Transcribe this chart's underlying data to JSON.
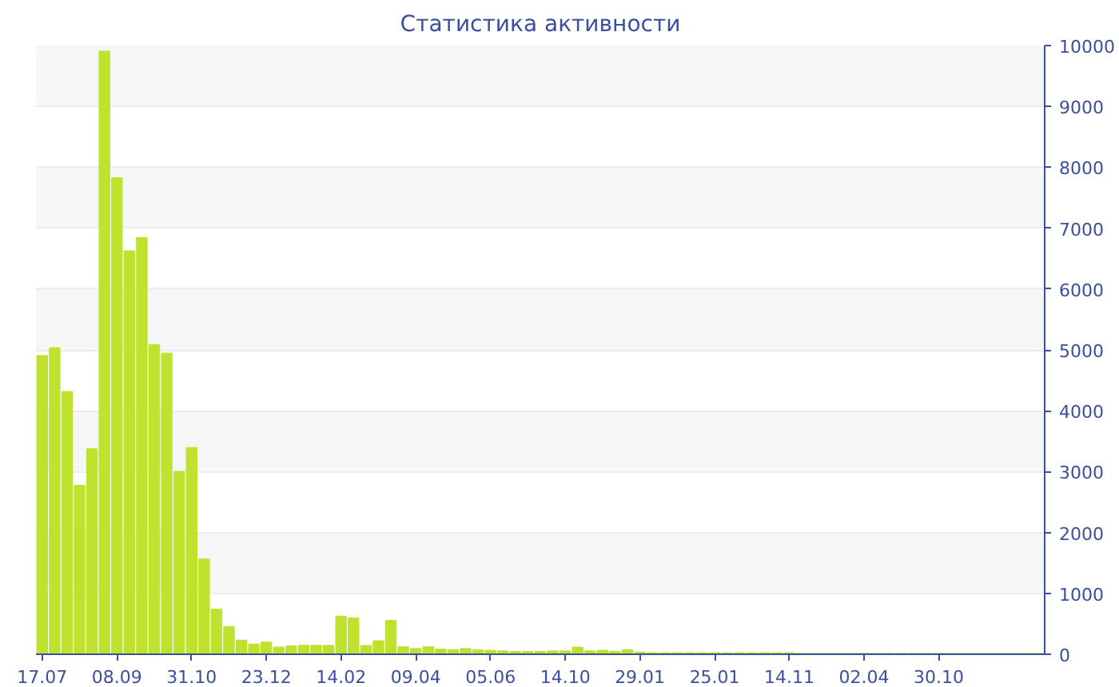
{
  "chart_data": {
    "type": "bar",
    "title": "Статистика активности",
    "categories": [
      "17.07",
      null,
      null,
      null,
      null,
      null,
      "08.09",
      null,
      null,
      null,
      null,
      null,
      "31.10",
      null,
      null,
      null,
      null,
      null,
      "23.12",
      null,
      null,
      null,
      null,
      null,
      "14.02",
      null,
      null,
      null,
      null,
      null,
      "09.04",
      null,
      null,
      null,
      null,
      null,
      "05.06",
      null,
      null,
      null,
      null,
      null,
      "14.10",
      null,
      null,
      null,
      null,
      null,
      "29.01",
      null,
      null,
      null,
      null,
      null,
      "25.01",
      null,
      null,
      null,
      null,
      null,
      "14.11",
      null,
      null,
      null,
      null,
      null,
      "02.04",
      null,
      null,
      null,
      null,
      null,
      "30.10",
      null,
      null,
      null,
      null,
      null,
      null,
      null,
      null
    ],
    "values": [
      4900,
      5030,
      4310,
      2770,
      3370,
      9900,
      7820,
      6620,
      6840,
      5080,
      4940,
      3000,
      3390,
      1560,
      735,
      450,
      225,
      160,
      195,
      110,
      130,
      140,
      140,
      140,
      620,
      590,
      137,
      216,
      550,
      118,
      90,
      118,
      80,
      70,
      90,
      70,
      60,
      50,
      40,
      40,
      40,
      50,
      50,
      110,
      50,
      60,
      40,
      70,
      30,
      20,
      20,
      20,
      20,
      20,
      20,
      20,
      20,
      20,
      20,
      20,
      20,
      10,
      10,
      10,
      10,
      10,
      10,
      10,
      10,
      10,
      10,
      10,
      10,
      10,
      10,
      10,
      10,
      10,
      10,
      10,
      10
    ],
    "color": "#bfe22e",
    "ylim": [
      0,
      10000
    ],
    "yticks": [
      0,
      1000,
      2000,
      3000,
      4000,
      5000,
      6000,
      7000,
      8000,
      9000,
      10000
    ],
    "grid": "y"
  }
}
